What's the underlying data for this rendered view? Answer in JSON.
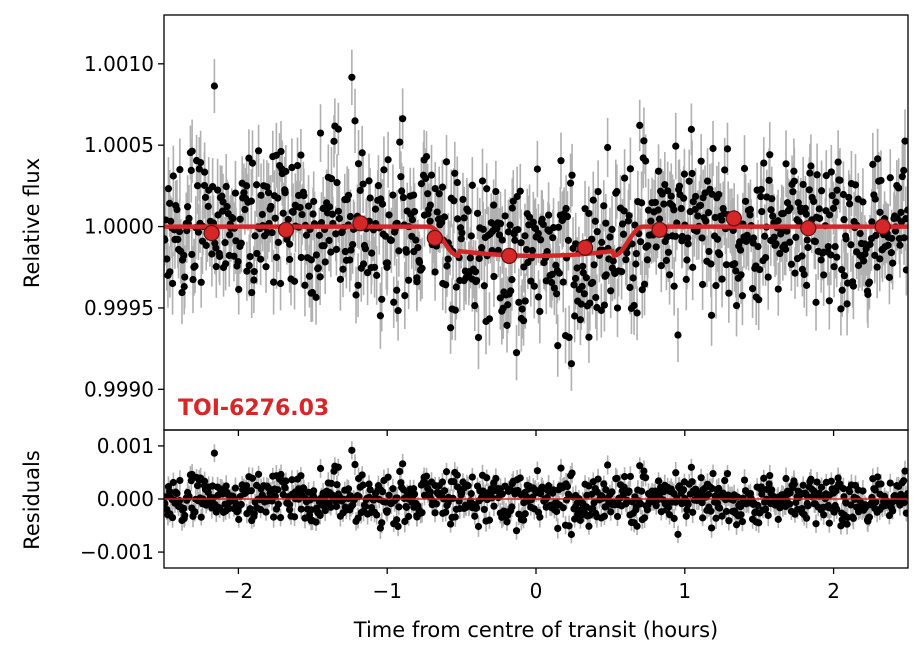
{
  "chart_data": [
    {
      "panel": "top",
      "type": "scatter",
      "title": "",
      "xlabel": "Time from centre of transit (hours)",
      "ylabel": "Relative flux",
      "xlim": [
        -2.5,
        2.5
      ],
      "ylim": [
        0.99875,
        1.0013
      ],
      "yticks": [
        0.999,
        0.9995,
        1.0,
        1.0005,
        1.001
      ],
      "ytick_labels": [
        "0.9990",
        "0.9995",
        "1.0000",
        "1.0005",
        "1.0010"
      ],
      "grid": false,
      "annotation": "TOI-6276.03",
      "colors": {
        "data": "#000000",
        "errorbar": "#b0b0b0",
        "model": "#d62728",
        "binned": "#d62728"
      },
      "transit_model": {
        "baseline": 1.0,
        "ingress_start": -0.72,
        "ingress_end": -0.52,
        "egress_start": 0.52,
        "egress_end": 0.72,
        "bottom_flux": 0.99982
      },
      "binned_points": {
        "x": [
          -2.18,
          -1.68,
          -1.18,
          -0.68,
          -0.18,
          0.33,
          0.83,
          1.33,
          1.83,
          2.33
        ],
        "y": [
          0.99996,
          0.99998,
          1.00002,
          0.99993,
          0.99982,
          0.99987,
          0.99998,
          1.00005,
          0.99999,
          1.0
        ]
      },
      "raw_points": {
        "n": 900,
        "scatter_sd": 0.00023,
        "errorbar_halfwidth": 0.00018,
        "seed": 7
      }
    },
    {
      "panel": "bottom",
      "type": "scatter",
      "xlabel": "Time from centre of transit (hours)",
      "ylabel": "Residuals",
      "xlim": [
        -2.5,
        2.5
      ],
      "ylim": [
        -0.0013,
        0.0013
      ],
      "yticks": [
        -0.001,
        0.0,
        0.001
      ],
      "ytick_labels": [
        "−0.001",
        "0.000",
        "0.001"
      ],
      "xticks": [
        -2,
        -1,
        0,
        1,
        2
      ],
      "xtick_labels": [
        "−2",
        "−1",
        "0",
        "1",
        "2"
      ],
      "grid": false,
      "reference_line": 0.0
    }
  ]
}
